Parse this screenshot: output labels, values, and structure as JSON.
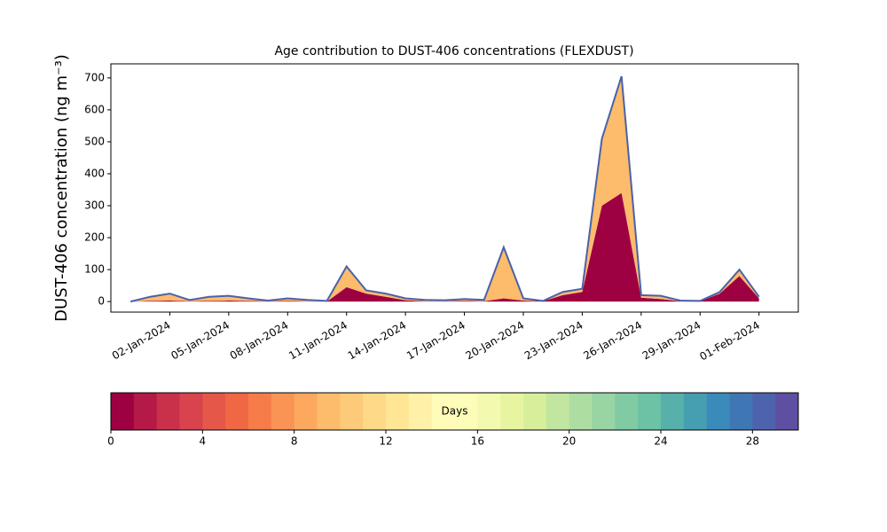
{
  "chart_data": [
    {
      "type": "area",
      "stacked": true,
      "title": "Age contribution to DUST-406 concentrations (FLEXDUST)",
      "y_label": "DUST-406 concentration (ng m⁻³)",
      "x": [
        "2023-12-31",
        "2024-01-01",
        "2024-01-02",
        "2024-01-03",
        "2024-01-04",
        "2024-01-05",
        "2024-01-06",
        "2024-01-07",
        "2024-01-08",
        "2024-01-09",
        "2024-01-10",
        "2024-01-11",
        "2024-01-12",
        "2024-01-13",
        "2024-01-14",
        "2024-01-15",
        "2024-01-16",
        "2024-01-17",
        "2024-01-18",
        "2024-01-19",
        "2024-01-20",
        "2024-01-21",
        "2024-01-22",
        "2024-01-23",
        "2024-01-24",
        "2024-01-25",
        "2024-01-26",
        "2024-01-27",
        "2024-01-28",
        "2024-01-29",
        "2024-01-30",
        "2024-01-31",
        "2024-02-01"
      ],
      "series": [
        {
          "color": "#9e0142",
          "values": [
            0,
            2,
            3,
            1,
            2,
            3,
            2,
            1,
            2,
            1,
            0,
            45,
            25,
            15,
            4,
            1,
            1,
            2,
            1,
            10,
            3,
            1,
            20,
            30,
            300,
            340,
            12,
            8,
            1,
            1,
            25,
            80,
            10
          ]
        },
        {
          "color": "#fdbb6c",
          "values": [
            0,
            13,
            22,
            4,
            13,
            15,
            8,
            2,
            8,
            4,
            2,
            65,
            10,
            10,
            6,
            4,
            3,
            6,
            4,
            160,
            7,
            1,
            10,
            10,
            210,
            365,
            8,
            10,
            2,
            1,
            5,
            20,
            5
          ]
        }
      ],
      "line_color": "#4a62a8",
      "xlim": [
        "2023-12-30",
        "2024-02-03"
      ],
      "xticks": [
        {
          "value": "2024-01-02",
          "label": "02-Jan-2024"
        },
        {
          "value": "2024-01-05",
          "label": "05-Jan-2024"
        },
        {
          "value": "2024-01-08",
          "label": "08-Jan-2024"
        },
        {
          "value": "2024-01-11",
          "label": "11-Jan-2024"
        },
        {
          "value": "2024-01-14",
          "label": "14-Jan-2024"
        },
        {
          "value": "2024-01-17",
          "label": "17-Jan-2024"
        },
        {
          "value": "2024-01-20",
          "label": "20-Jan-2024"
        },
        {
          "value": "2024-01-23",
          "label": "23-Jan-2024"
        },
        {
          "value": "2024-01-26",
          "label": "26-Jan-2024"
        },
        {
          "value": "2024-01-29",
          "label": "29-Jan-2024"
        },
        {
          "value": "2024-02-01",
          "label": "01-Feb-2024"
        }
      ],
      "ylim": [
        -33,
        744
      ],
      "yticks": [
        0,
        100,
        200,
        300,
        400,
        500,
        600,
        700
      ],
      "grid": false
    },
    {
      "type": "colorbar",
      "label": "Days",
      "colors": [
        "#9e0142",
        "#b41947",
        "#c9304a",
        "#d8434e",
        "#e55749",
        "#f06744",
        "#f67c4a",
        "#f99455",
        "#fca85e",
        "#fdbb6c",
        "#fdca79",
        "#fed987",
        "#fee695",
        "#fff1a8",
        "#fffbb8",
        "#fbfdb8",
        "#f3faaf",
        "#e7f5a1",
        "#d7ef9b",
        "#c2e6a0",
        "#aedda2",
        "#98d4a4",
        "#80cba4",
        "#6bc2a5",
        "#58b0aa",
        "#469eb1",
        "#3a8bba",
        "#3f77b5",
        "#4e63ad",
        "#5e4fa2"
      ],
      "xlim": [
        0,
        30
      ],
      "xticks": [
        0,
        4,
        8,
        12,
        16,
        20,
        24,
        28
      ]
    }
  ]
}
